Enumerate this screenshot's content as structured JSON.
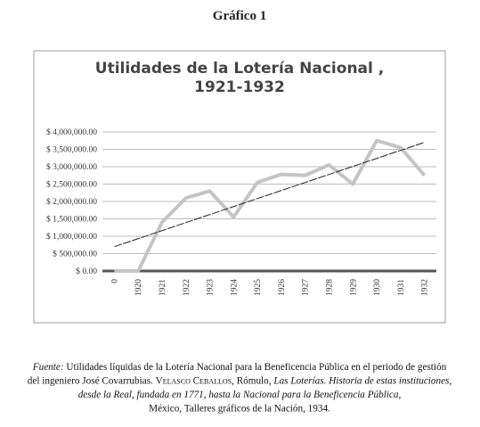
{
  "header": {
    "title": "Gráfico 1"
  },
  "chart_data": {
    "type": "line",
    "title": [
      "Utilidades de la Lotería Nacional ,",
      "1921-1932"
    ],
    "categories": [
      "0",
      "1920",
      "1921",
      "1922",
      "1923",
      "1924",
      "1925",
      "1926",
      "1927",
      "1928",
      "1929",
      "1930",
      "1931",
      "1932"
    ],
    "values": [
      0,
      0,
      1400000,
      2100000,
      2300000,
      1550000,
      2550000,
      2780000,
      2750000,
      3050000,
      2500000,
      3750000,
      3550000,
      2750000
    ],
    "color": "#c4c4c4",
    "trendline": [
      700000,
      3700000
    ],
    "trendline_color": "#222222",
    "ylim": [
      0,
      4000000
    ],
    "yticks": [
      {
        "value": 0,
        "label": "$ 0.00"
      },
      {
        "value": 500000,
        "label": "$ 500,000.00"
      },
      {
        "value": 1000000,
        "label": "$ 1,000,000.00"
      },
      {
        "value": 1500000,
        "label": "$ 1,500,000.00"
      },
      {
        "value": 2000000,
        "label": "$ 2,000,000.00"
      },
      {
        "value": 2500000,
        "label": "$ 2,500,000.00"
      },
      {
        "value": 3000000,
        "label": "$ 3,000,000.00"
      },
      {
        "value": 3500000,
        "label": "$ 3,500,000.00"
      },
      {
        "value": 4000000,
        "label": "$ 4,000,000.00"
      }
    ],
    "grid": true
  },
  "caption": {
    "lines": [
      [
        {
          "text": "Fuente:",
          "style": "italic"
        },
        {
          "text": " Utilidades líquidas de la Lotería Nacional para la Beneficencia Pública en el periodo de gestión",
          "style": "normal"
        }
      ],
      [
        {
          "text": "del ingeniero José Covarrubias. ",
          "style": "normal"
        },
        {
          "text": "Velasco Ceballos",
          "style": "smallcaps"
        },
        {
          "text": ", Rómulo, ",
          "style": "normal"
        },
        {
          "text": "Las Loterías. Historia de estas instituciones,",
          "style": "italic"
        }
      ],
      [
        {
          "text": "desde la Real, fundada en 1771, hasta la Nacional para la Beneficencia Pública,",
          "style": "italic"
        }
      ],
      [
        {
          "text": "México, Talleres gráficos de la Nación, 1934.",
          "style": "normal"
        }
      ]
    ]
  }
}
